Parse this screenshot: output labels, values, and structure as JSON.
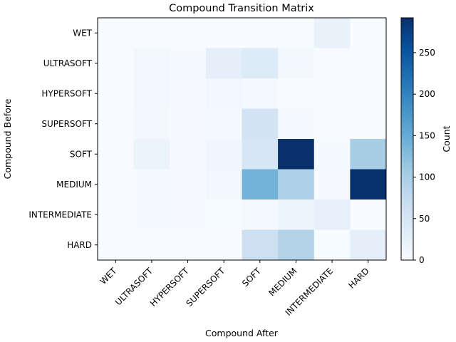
{
  "chart_data": {
    "type": "heatmap",
    "title": "Compound Transition Matrix",
    "xlabel": "Compound After",
    "ylabel": "Compound Before",
    "x_categories": [
      "WET",
      "ULTRASOFT",
      "HYPERSOFT",
      "SUPERSOFT",
      "SOFT",
      "MEDIUM",
      "INTERMEDIATE",
      "HARD"
    ],
    "y_categories": [
      "WET",
      "ULTRASOFT",
      "HYPERSOFT",
      "SUPERSOFT",
      "SOFT",
      "MEDIUM",
      "INTERMEDIATE",
      "HARD"
    ],
    "values": [
      [
        0,
        0,
        0,
        0,
        0,
        0,
        20,
        0
      ],
      [
        0,
        10,
        3,
        28,
        38,
        6,
        0,
        0
      ],
      [
        0,
        8,
        2,
        10,
        4,
        0,
        0,
        0
      ],
      [
        0,
        7,
        2,
        4,
        55,
        4,
        0,
        0
      ],
      [
        0,
        16,
        2,
        12,
        48,
        292,
        3,
        100
      ],
      [
        0,
        3,
        2,
        8,
        140,
        95,
        2,
        290
      ],
      [
        0,
        3,
        2,
        1,
        4,
        14,
        24,
        0
      ],
      [
        0,
        0,
        0,
        0,
        62,
        90,
        1,
        28
      ]
    ],
    "colorbar": {
      "label": "Count",
      "range": [
        0,
        292
      ],
      "ticks": [
        0,
        50,
        100,
        150,
        200,
        250
      ],
      "colormap": "Blues"
    }
  }
}
